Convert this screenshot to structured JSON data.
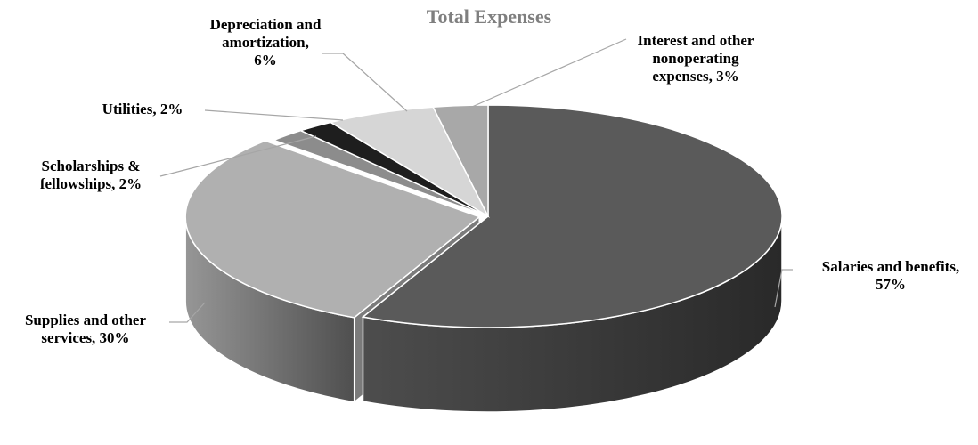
{
  "chart_data": {
    "type": "pie",
    "title": "Total Expenses",
    "categories": [
      "Salaries and benefits",
      "Supplies and other services",
      "Scholarships & fellowships",
      "Utilities",
      "Depreciation and amortization",
      "Interest and other nonoperating expenses"
    ],
    "values": [
      57,
      30,
      2,
      2,
      6,
      3
    ],
    "units": "%",
    "labels": [
      {
        "lines": [
          "Salaries and benefits,",
          "57%"
        ]
      },
      {
        "lines": [
          "Supplies and other",
          "services, 30%"
        ]
      },
      {
        "lines": [
          "Scholarships &",
          "fellowships, 2%"
        ]
      },
      {
        "lines": [
          "Utilities, 2%"
        ]
      },
      {
        "lines": [
          "Depreciation and",
          "amortization,",
          "6%"
        ]
      },
      {
        "lines": [
          "Interest and other",
          "nonoperating",
          "expenses, 3%"
        ]
      }
    ],
    "colors": [
      "#5a5a5a",
      "#b0b0b0",
      "#8c8c8c",
      "#1e1e1e",
      "#d6d6d6",
      "#a8a8a8"
    ],
    "legend": "none",
    "style": "3d-pie"
  }
}
